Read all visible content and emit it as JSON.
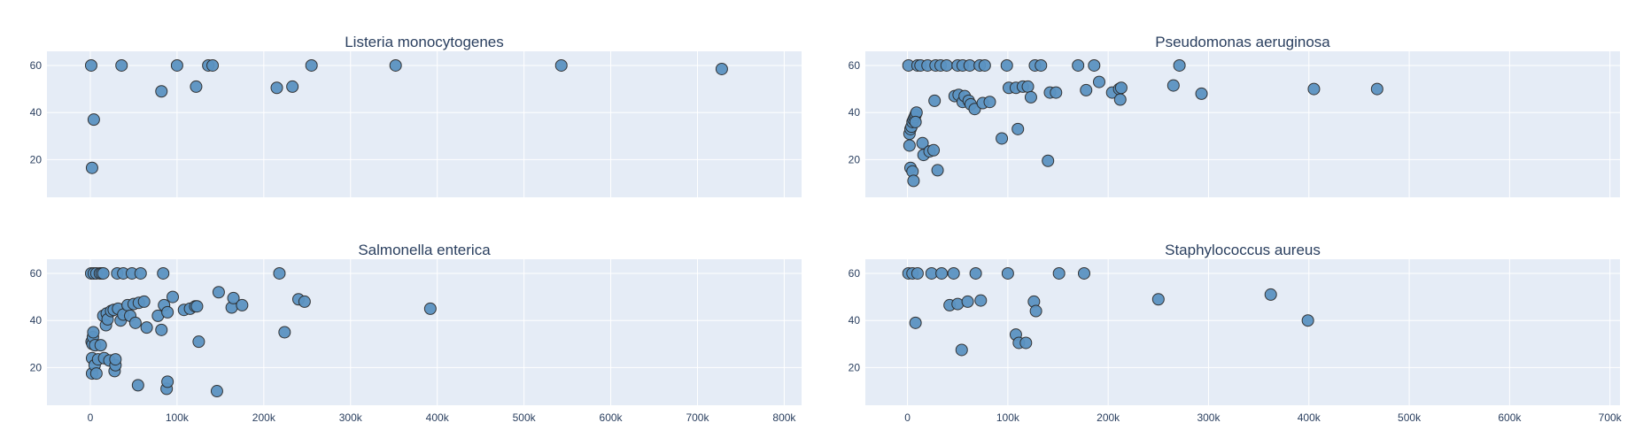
{
  "colors": {
    "plot_bg": "#e5ecf6",
    "marker_fill": "#5b93c2",
    "marker_edge": "#2b2b2b",
    "text": "#2a3f5f",
    "grid": "#ffffff"
  },
  "chart_data": [
    {
      "type": "scatter",
      "title": "Listeria monocytogenes",
      "xlabel": "",
      "ylabel": "",
      "xlim": [
        -50000,
        820000
      ],
      "ylim": [
        4,
        66
      ],
      "x_ticks": [
        0,
        100000,
        200000,
        300000,
        400000,
        500000,
        600000,
        700000,
        800000
      ],
      "x_tick_labels": [
        "0",
        "100k",
        "200k",
        "300k",
        "400k",
        "500k",
        "600k",
        "700k",
        "800k"
      ],
      "y_ticks": [
        20,
        40,
        60
      ],
      "y_tick_labels": [
        "20",
        "40",
        "60"
      ],
      "show_x_tick_labels": false,
      "grid": true,
      "points": [
        [
          1000,
          60
        ],
        [
          2000,
          16.5
        ],
        [
          4000,
          37
        ],
        [
          36000,
          60
        ],
        [
          82000,
          49
        ],
        [
          100000,
          60
        ],
        [
          122000,
          51
        ],
        [
          136000,
          60
        ],
        [
          141000,
          60
        ],
        [
          215000,
          50.5
        ],
        [
          233000,
          51
        ],
        [
          255000,
          60
        ],
        [
          352000,
          60
        ],
        [
          543000,
          60
        ],
        [
          728000,
          58.5
        ]
      ]
    },
    {
      "type": "scatter",
      "title": "Pseudomonas aeruginosa",
      "xlabel": "",
      "ylabel": "",
      "xlim": [
        -42000,
        710000
      ],
      "ylim": [
        4,
        66
      ],
      "x_ticks": [
        0,
        100000,
        200000,
        300000,
        400000,
        500000,
        600000,
        700000
      ],
      "x_tick_labels": [
        "0",
        "100k",
        "200k",
        "300k",
        "400k",
        "500k",
        "600k",
        "700k"
      ],
      "y_ticks": [
        20,
        40,
        60
      ],
      "y_tick_labels": [
        "20",
        "40",
        "60"
      ],
      "show_x_tick_labels": false,
      "grid": true,
      "points": [
        [
          1000,
          60
        ],
        [
          2000,
          31
        ],
        [
          2000,
          26
        ],
        [
          3000,
          33
        ],
        [
          3000,
          16.5
        ],
        [
          4000,
          34
        ],
        [
          5000,
          36
        ],
        [
          5000,
          15
        ],
        [
          6000,
          11
        ],
        [
          6000,
          37
        ],
        [
          7000,
          38
        ],
        [
          8000,
          39
        ],
        [
          9000,
          40
        ],
        [
          8000,
          36
        ],
        [
          10000,
          60
        ],
        [
          13000,
          60
        ],
        [
          15000,
          27
        ],
        [
          16000,
          22
        ],
        [
          20000,
          60
        ],
        [
          22000,
          23.5
        ],
        [
          26000,
          24
        ],
        [
          27000,
          45
        ],
        [
          28000,
          60
        ],
        [
          30000,
          15.5
        ],
        [
          33000,
          60
        ],
        [
          39000,
          60
        ],
        [
          47000,
          47
        ],
        [
          50000,
          60
        ],
        [
          51000,
          47.5
        ],
        [
          55000,
          44.5
        ],
        [
          55000,
          60
        ],
        [
          57000,
          47
        ],
        [
          61000,
          45
        ],
        [
          62000,
          60
        ],
        [
          63000,
          43.5
        ],
        [
          67000,
          41.5
        ],
        [
          72000,
          60
        ],
        [
          75000,
          44
        ],
        [
          77000,
          60
        ],
        [
          82000,
          44.5
        ],
        [
          94000,
          29
        ],
        [
          99000,
          60
        ],
        [
          101000,
          50.5
        ],
        [
          108000,
          50.5
        ],
        [
          110000,
          33
        ],
        [
          115000,
          51
        ],
        [
          120000,
          51
        ],
        [
          123000,
          46.5
        ],
        [
          127000,
          60
        ],
        [
          133000,
          60
        ],
        [
          140000,
          19.5
        ],
        [
          142000,
          48.5
        ],
        [
          148000,
          48.5
        ],
        [
          170000,
          60
        ],
        [
          178000,
          49.5
        ],
        [
          186000,
          60
        ],
        [
          191000,
          53
        ],
        [
          204000,
          48.5
        ],
        [
          211000,
          50
        ],
        [
          212000,
          45.5
        ],
        [
          213000,
          50.5
        ],
        [
          265000,
          51.5
        ],
        [
          271000,
          60
        ],
        [
          293000,
          48
        ],
        [
          405000,
          50
        ],
        [
          468000,
          50
        ]
      ]
    },
    {
      "type": "scatter",
      "title": "Salmonella enterica",
      "xlabel": "",
      "ylabel": "",
      "xlim": [
        -50000,
        820000
      ],
      "ylim": [
        4,
        66
      ],
      "x_ticks": [
        0,
        100000,
        200000,
        300000,
        400000,
        500000,
        600000,
        700000,
        800000
      ],
      "x_tick_labels": [
        "0",
        "100k",
        "200k",
        "300k",
        "400k",
        "500k",
        "600k",
        "700k",
        "800k"
      ],
      "y_ticks": [
        20,
        40,
        60
      ],
      "y_tick_labels": [
        "20",
        "40",
        "60"
      ],
      "show_x_tick_labels": true,
      "grid": true,
      "points": [
        [
          1000,
          60
        ],
        [
          2000,
          17.5
        ],
        [
          2000,
          24
        ],
        [
          1500,
          31
        ],
        [
          2500,
          30
        ],
        [
          3000,
          33
        ],
        [
          3500,
          35
        ],
        [
          4000,
          60
        ],
        [
          5000,
          21
        ],
        [
          5500,
          29.5
        ],
        [
          7000,
          60
        ],
        [
          7000,
          17.5
        ],
        [
          9000,
          23.5
        ],
        [
          11000,
          60
        ],
        [
          12000,
          29.5
        ],
        [
          13000,
          60
        ],
        [
          15000,
          60
        ],
        [
          15000,
          42
        ],
        [
          16000,
          24
        ],
        [
          18000,
          38
        ],
        [
          19000,
          43
        ],
        [
          20000,
          40.5
        ],
        [
          22000,
          23
        ],
        [
          24000,
          44
        ],
        [
          27000,
          44.5
        ],
        [
          28000,
          18.5
        ],
        [
          29000,
          21
        ],
        [
          29000,
          23.5
        ],
        [
          31000,
          60
        ],
        [
          32000,
          45
        ],
        [
          35000,
          40
        ],
        [
          38000,
          60
        ],
        [
          38000,
          42.5
        ],
        [
          43000,
          46.5
        ],
        [
          46000,
          42
        ],
        [
          48000,
          60
        ],
        [
          50000,
          47
        ],
        [
          52000,
          39
        ],
        [
          55000,
          12.5
        ],
        [
          56000,
          47.5
        ],
        [
          58000,
          60
        ],
        [
          62000,
          48
        ],
        [
          65000,
          37
        ],
        [
          78000,
          42
        ],
        [
          82000,
          36
        ],
        [
          84000,
          60
        ],
        [
          85000,
          46.5
        ],
        [
          88000,
          11
        ],
        [
          89000,
          14
        ],
        [
          89000,
          43.5
        ],
        [
          95000,
          50
        ],
        [
          108000,
          44.5
        ],
        [
          115000,
          45
        ],
        [
          121000,
          46
        ],
        [
          123000,
          46
        ],
        [
          125000,
          31
        ],
        [
          146000,
          10
        ],
        [
          148000,
          52
        ],
        [
          163000,
          45.5
        ],
        [
          165000,
          49.5
        ],
        [
          175000,
          46.5
        ],
        [
          218000,
          60
        ],
        [
          224000,
          35
        ],
        [
          240000,
          49
        ],
        [
          247000,
          48
        ],
        [
          392000,
          45
        ]
      ]
    },
    {
      "type": "scatter",
      "title": "Staphylococcus aureus",
      "xlabel": "",
      "ylabel": "",
      "xlim": [
        -42000,
        710000
      ],
      "ylim": [
        4,
        66
      ],
      "x_ticks": [
        0,
        100000,
        200000,
        300000,
        400000,
        500000,
        600000,
        700000
      ],
      "x_tick_labels": [
        "0",
        "100k",
        "200k",
        "300k",
        "400k",
        "500k",
        "600k",
        "700k"
      ],
      "y_ticks": [
        20,
        40,
        60
      ],
      "y_tick_labels": [
        "20",
        "40",
        "60"
      ],
      "show_x_tick_labels": true,
      "grid": true,
      "points": [
        [
          1000,
          60
        ],
        [
          5000,
          60
        ],
        [
          8000,
          39
        ],
        [
          10000,
          60
        ],
        [
          24000,
          60
        ],
        [
          34000,
          60
        ],
        [
          42000,
          46.5
        ],
        [
          46000,
          60
        ],
        [
          50000,
          47
        ],
        [
          54000,
          27.5
        ],
        [
          60000,
          48
        ],
        [
          68000,
          60
        ],
        [
          73000,
          48.5
        ],
        [
          100000,
          60
        ],
        [
          108000,
          34
        ],
        [
          111000,
          30.5
        ],
        [
          118000,
          30.5
        ],
        [
          126000,
          48
        ],
        [
          128000,
          44
        ],
        [
          151000,
          60
        ],
        [
          176000,
          60
        ],
        [
          250000,
          49
        ],
        [
          362000,
          51
        ],
        [
          399000,
          40
        ]
      ]
    }
  ]
}
